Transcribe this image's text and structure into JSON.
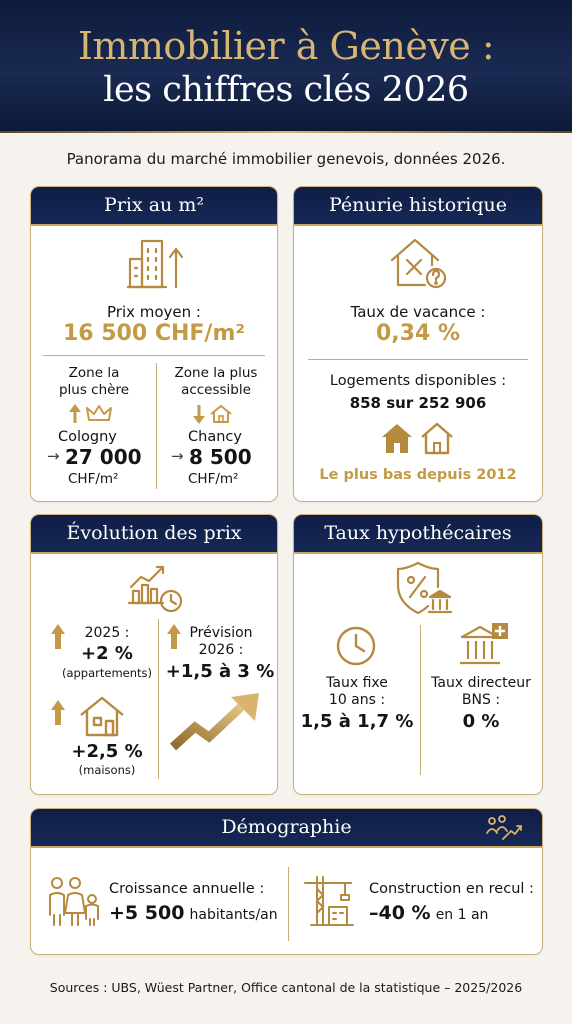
{
  "header": {
    "title_line1": "Immobilier à Genève :",
    "title_line2": "les chiffres clés 2026"
  },
  "subtitle": "Panorama du marché immobilier genevois, données 2026.",
  "prix": {
    "title": "Prix au m²",
    "avg_label": "Prix moyen :",
    "avg_value": "16 500 CHF/m²",
    "left": {
      "label_l1": "Zone la",
      "label_l2": "plus chère",
      "place": "Cologny",
      "arrow": "→",
      "value": "27 000",
      "unit": "CHF/m²"
    },
    "right": {
      "label_l1": "Zone la plus",
      "label_l2": "accessible",
      "place": "Chancy",
      "arrow": "→",
      "value": "8 500",
      "unit": "CHF/m²"
    }
  },
  "penurie": {
    "title": "Pénurie historique",
    "vacance_label": "Taux de vacance :",
    "vacance_value": "0,34 %",
    "logements_label": "Logements disponibles :",
    "logements_value": "858 sur 252 906",
    "footnote": "Le plus bas depuis 2012"
  },
  "evolution": {
    "title": "Évolution des prix",
    "y2025_label": "2025 :",
    "y2025_value": "+2 %",
    "y2025_note": "(appartements)",
    "maisons_value": "+2,5 %",
    "maisons_note": "(maisons)",
    "forecast_l1": "Prévision",
    "forecast_l2": "2026 :",
    "forecast_value": "+1,5 à 3 %"
  },
  "taux": {
    "title": "Taux hypothécaires",
    "fixe_l1": "Taux fixe",
    "fixe_l2": "10 ans :",
    "fixe_value": "1,5 à 1,7 %",
    "bns_l1": "Taux directeur",
    "bns_l2": "BNS :",
    "bns_value": "0 %"
  },
  "demo": {
    "title": "Démographie",
    "croissance_label": "Croissance annuelle :",
    "croissance_value": "+5 500",
    "croissance_unit": "habitants/an",
    "construction_label": "Construction en recul :",
    "construction_value": "–40 %",
    "construction_unit": "en 1 an"
  },
  "sources": "Sources : UBS, Wüest Partner, Office cantonal de la statistique – 2025/2026",
  "colors": {
    "navy": "#0f1e45",
    "gold": "#c49a46",
    "icon_gold": "#b58a3e",
    "border": "#cbb080"
  },
  "icons": [
    "building-arrow-up-icon",
    "arrow-up-crown-icon",
    "arrow-down-house-icon",
    "house-x-question-icon",
    "houses-icon",
    "chart-clock-icon",
    "arrow-up-icon",
    "house-icon",
    "rising-arrow-icon",
    "shield-percent-bank-icon",
    "clock-icon",
    "bank-plus-icon",
    "people-growth-icon",
    "family-icon",
    "crane-building-icon"
  ]
}
